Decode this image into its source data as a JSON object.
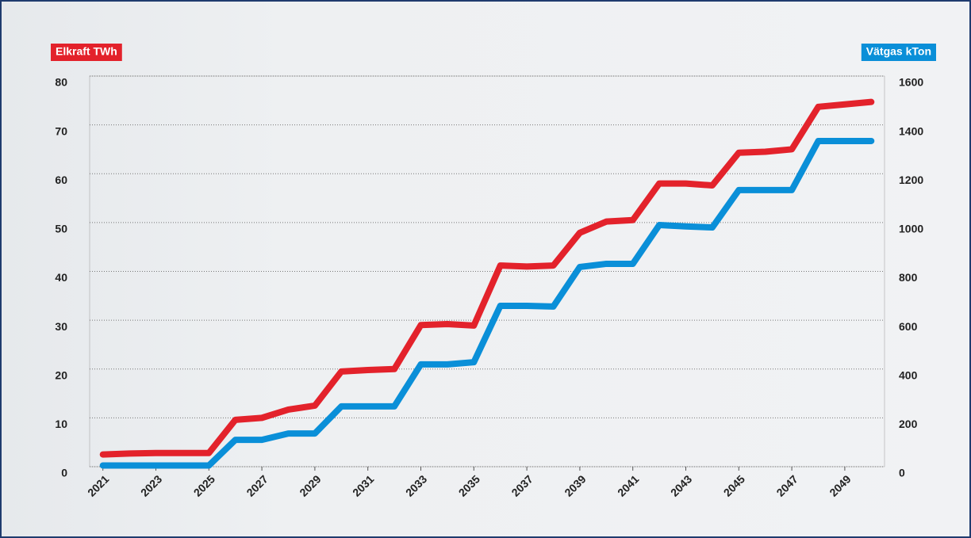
{
  "chart_data": {
    "type": "line",
    "x": [
      2021,
      2022,
      2023,
      2024,
      2025,
      2026,
      2027,
      2028,
      2029,
      2030,
      2031,
      2032,
      2033,
      2034,
      2035,
      2036,
      2037,
      2038,
      2039,
      2040,
      2041,
      2042,
      2043,
      2044,
      2045,
      2046,
      2047,
      2048,
      2049,
      2050
    ],
    "xlim": [
      2020.5,
      2050.5
    ],
    "xticks": [
      2021,
      2023,
      2025,
      2027,
      2029,
      2031,
      2033,
      2035,
      2037,
      2039,
      2041,
      2043,
      2045,
      2047,
      2049
    ],
    "ylim": [
      0,
      80
    ],
    "yticks": [
      0,
      10,
      20,
      30,
      40,
      50,
      60,
      70,
      80
    ],
    "y2lim": [
      0,
      1600
    ],
    "y2ticks": [
      0,
      200,
      400,
      600,
      800,
      1000,
      1200,
      1400,
      1600
    ],
    "grid": true,
    "series": [
      {
        "name": "Elkraft TWh",
        "color": "#e3222b",
        "axis": "y",
        "values": [
          2.5,
          2.7,
          2.8,
          2.8,
          2.8,
          9.6,
          10,
          11.7,
          12.5,
          19.5,
          19.8,
          20,
          29,
          29.2,
          28.9,
          41.2,
          41,
          41.2,
          47.9,
          50.2,
          50.5,
          58,
          58,
          57.6,
          64.3,
          64.5,
          65,
          73.7,
          74.2,
          74.7
        ]
      },
      {
        "name": "Vätgas kTon",
        "color": "#0a8fd8",
        "axis": "y2",
        "values": [
          5,
          5,
          5,
          5,
          5,
          110,
          110,
          136,
          136,
          247,
          247,
          247,
          419,
          419,
          428,
          659,
          659,
          656,
          818,
          831,
          831,
          990,
          984,
          980,
          1133,
          1133,
          1133,
          1334,
          1334,
          1334
        ]
      }
    ]
  }
}
